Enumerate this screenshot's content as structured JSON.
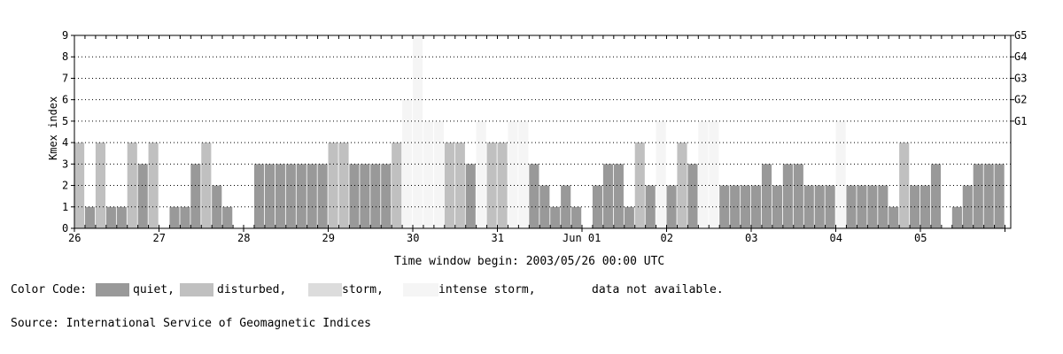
{
  "chart_data": {
    "type": "bar",
    "ylabel": "Kmex index",
    "xlabel": "Time window begin: 2003/05/26 00:00 UTC",
    "ylim": [
      0,
      9
    ],
    "yticks": [
      0,
      1,
      2,
      3,
      4,
      5,
      6,
      7,
      8,
      9
    ],
    "right_ticks": [
      {
        "value": 5,
        "label": "G1"
      },
      {
        "value": 6,
        "label": "G2"
      },
      {
        "value": 7,
        "label": "G3"
      },
      {
        "value": 8,
        "label": "G4"
      },
      {
        "value": 9,
        "label": "G5"
      }
    ],
    "days": [
      "26",
      "27",
      "28",
      "29",
      "30",
      "31",
      "Jun 01",
      "02",
      "03",
      "04",
      "05"
    ],
    "bars_per_day": 8,
    "grid": "dotted horizontal at 1-9, ticks every bin",
    "colors": {
      "quiet": "#999999",
      "disturbed": "#c0c0c0",
      "storm": "#dcdcdc",
      "intense": "#f5f5f5",
      "na": "#eeeeee"
    },
    "series": [
      {
        "day": "26",
        "values": [
          4,
          1,
          4,
          1,
          1,
          4,
          3,
          4
        ],
        "class": [
          "disturbed",
          "quiet",
          "disturbed",
          "quiet",
          "quiet",
          "disturbed",
          "quiet",
          "disturbed"
        ]
      },
      {
        "day": "27",
        "values": [
          0,
          1,
          1,
          3,
          4,
          2,
          1,
          0
        ],
        "class": [
          "none",
          "quiet",
          "quiet",
          "quiet",
          "disturbed",
          "quiet",
          "quiet",
          "none"
        ]
      },
      {
        "day": "28",
        "values": [
          0,
          3,
          3,
          3,
          3,
          3,
          3,
          3
        ],
        "class": [
          "none",
          "quiet",
          "quiet",
          "quiet",
          "quiet",
          "quiet",
          "quiet",
          "quiet"
        ]
      },
      {
        "day": "29",
        "values": [
          4,
          4,
          3,
          3,
          3,
          3,
          4,
          6
        ],
        "class": [
          "disturbed",
          "disturbed",
          "quiet",
          "quiet",
          "quiet",
          "quiet",
          "disturbed",
          "intense"
        ]
      },
      {
        "day": "30",
        "values": [
          9,
          5,
          5,
          4,
          4,
          3,
          5,
          4
        ],
        "class": [
          "intense",
          "intense",
          "intense",
          "disturbed",
          "disturbed",
          "quiet",
          "intense",
          "disturbed"
        ]
      },
      {
        "day": "31",
        "values": [
          4,
          5,
          5,
          3,
          2,
          1,
          2,
          1
        ],
        "class": [
          "disturbed",
          "intense",
          "intense",
          "quiet",
          "quiet",
          "quiet",
          "quiet",
          "quiet"
        ]
      },
      {
        "day": "Jun 01",
        "values": [
          0,
          2,
          3,
          3,
          1,
          4,
          2,
          5
        ],
        "class": [
          "none",
          "quiet",
          "quiet",
          "quiet",
          "quiet",
          "disturbed",
          "quiet",
          "intense"
        ]
      },
      {
        "day": "02",
        "values": [
          2,
          4,
          3,
          5,
          5,
          2,
          2,
          2
        ],
        "class": [
          "quiet",
          "disturbed",
          "quiet",
          "intense",
          "intense",
          "quiet",
          "quiet",
          "quiet"
        ]
      },
      {
        "day": "03",
        "values": [
          2,
          3,
          2,
          3,
          3,
          2,
          2,
          2
        ],
        "class": [
          "quiet",
          "quiet",
          "quiet",
          "quiet",
          "quiet",
          "quiet",
          "quiet",
          "quiet"
        ]
      },
      {
        "day": "04",
        "values": [
          5,
          2,
          2,
          2,
          2,
          1,
          4,
          2
        ],
        "class": [
          "intense",
          "quiet",
          "quiet",
          "quiet",
          "quiet",
          "quiet",
          "disturbed",
          "quiet"
        ]
      },
      {
        "day": "05",
        "values": [
          2,
          3,
          0,
          1,
          2,
          3,
          3,
          3
        ],
        "class": [
          "quiet",
          "quiet",
          "none",
          "quiet",
          "quiet",
          "quiet",
          "quiet",
          "quiet"
        ]
      }
    ]
  },
  "legend": {
    "title": "Color Code:",
    "items": [
      {
        "label": "quiet,",
        "color": "#999999"
      },
      {
        "label": "disturbed,",
        "color": "#c0c0c0"
      },
      {
        "label": "storm,",
        "color": "#dcdcdc"
      },
      {
        "label": "intense storm,",
        "color": "#f5f5f5"
      },
      {
        "label": "data not available.",
        "color": "#ffffff"
      }
    ]
  },
  "source": "Source: International Service of Geomagnetic Indices"
}
